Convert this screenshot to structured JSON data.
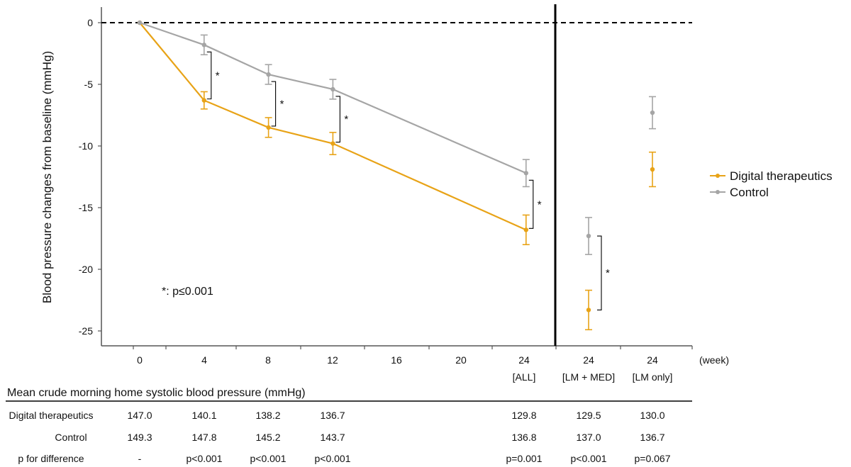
{
  "chart_data": {
    "type": "line",
    "ylabel": "Blood pressure changes from baseline (mmHg)",
    "x_unit_label": "(week)",
    "ylim": [
      -26,
      1.5
    ],
    "y_ticks": [
      0,
      -5,
      -10,
      -15,
      -20,
      -25
    ],
    "x_ticks": [
      {
        "label": "0",
        "sub": ""
      },
      {
        "label": "4",
        "sub": ""
      },
      {
        "label": "8",
        "sub": ""
      },
      {
        "label": "12",
        "sub": ""
      },
      {
        "label": "16",
        "sub": ""
      },
      {
        "label": "20",
        "sub": ""
      },
      {
        "label": "24",
        "sub": "[ALL]"
      },
      {
        "label": "24",
        "sub": "[LM + MED]"
      },
      {
        "label": "24",
        "sub": "[LM only]"
      }
    ],
    "series": [
      {
        "name": "Digital therapeutics",
        "color": "#E8A317",
        "x": [
          0,
          4,
          8,
          12,
          24
        ],
        "y": [
          0,
          -6.3,
          -8.5,
          -9.8,
          -16.8
        ],
        "err": [
          0,
          0.7,
          0.8,
          0.9,
          1.2
        ],
        "subgroups": [
          {
            "group": "[LM + MED]",
            "y": -23.3,
            "err": 1.6
          },
          {
            "group": "[LM only]",
            "y": -11.9,
            "err": 1.4
          }
        ]
      },
      {
        "name": "Control",
        "color": "#A5A5A5",
        "x": [
          0,
          4,
          8,
          12,
          24
        ],
        "y": [
          0,
          -1.8,
          -4.2,
          -5.4,
          -12.2
        ],
        "err": [
          0,
          0.8,
          0.8,
          0.8,
          1.1
        ],
        "subgroups": [
          {
            "group": "[LM + MED]",
            "y": -17.3,
            "err": 1.5
          },
          {
            "group": "[LM only]",
            "y": -7.3,
            "err": 1.3
          }
        ]
      }
    ],
    "significance": [
      {
        "at": "4",
        "label": "*"
      },
      {
        "at": "8",
        "label": "*"
      },
      {
        "at": "12",
        "label": "*"
      },
      {
        "at": "24 [ALL]",
        "label": "*"
      },
      {
        "at": "24 [LM + MED]",
        "label": "*"
      }
    ],
    "annotation": "*: p≤0.001",
    "legend_position": "right"
  },
  "table": {
    "title": "Mean crude morning home systolic blood pressure (mmHg)",
    "rows": [
      {
        "label": "Digital therapeutics",
        "values": [
          "147.0",
          "140.1",
          "138.2",
          "136.7",
          "129.8",
          "129.5",
          "130.0"
        ]
      },
      {
        "label": "Control",
        "values": [
          "149.3",
          "147.8",
          "145.2",
          "143.7",
          "136.8",
          "137.0",
          "136.7"
        ]
      },
      {
        "label": "p for difference",
        "values": [
          "-",
          "p<0.001",
          "p<0.001",
          "p<0.001",
          "p=0.001",
          "p<0.001",
          "p=0.067"
        ]
      }
    ]
  }
}
